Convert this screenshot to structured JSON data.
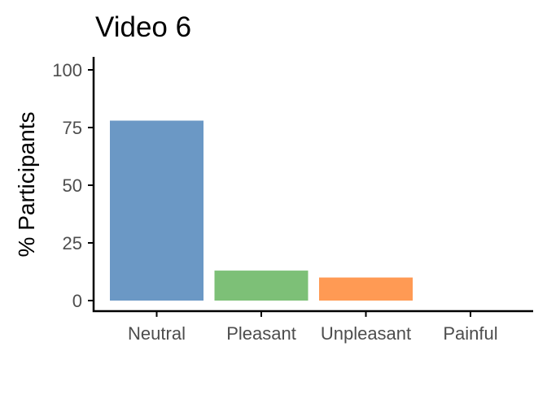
{
  "chart_data": {
    "type": "bar",
    "title": "Video 6",
    "xlabel": "",
    "ylabel": "% Participants",
    "categories": [
      "Neutral",
      "Pleasant",
      "Unpleasant",
      "Painful"
    ],
    "values": [
      78,
      13,
      10,
      0
    ],
    "colors": [
      "#6b98c5",
      "#7dc077",
      "#ff9a54",
      "#ffffff"
    ],
    "ylim": [
      0,
      105
    ],
    "yticks": [
      0,
      25,
      50,
      75,
      100
    ],
    "ytick_labels": [
      "0",
      "25",
      "50",
      "75",
      "100"
    ],
    "grid": false,
    "legend": "none"
  }
}
